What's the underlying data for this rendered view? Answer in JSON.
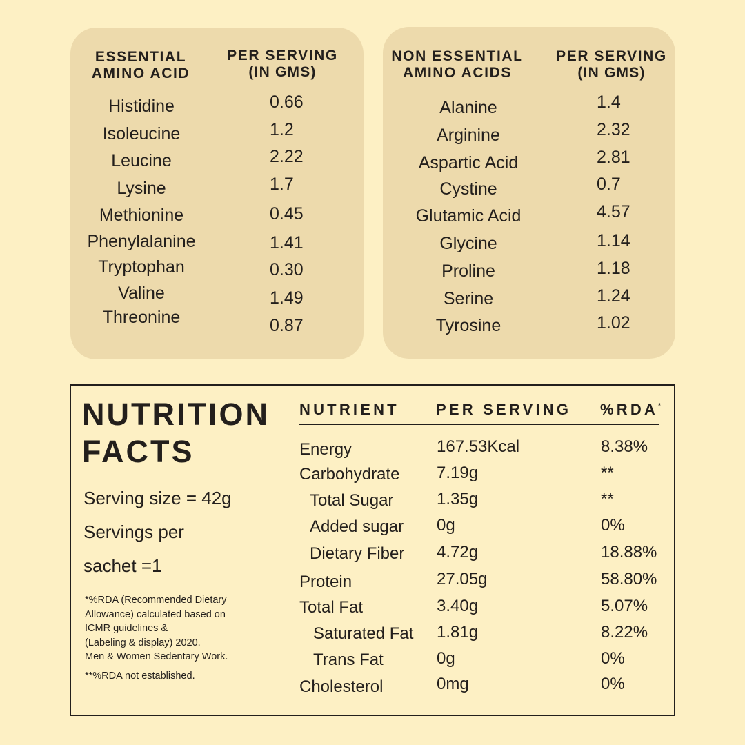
{
  "essential_amino_acids": {
    "header": {
      "col1_line1": "ESSENTIAL",
      "col1_line2": "AMINO ACID",
      "col2_line1": "PER SERVING",
      "col2_line2": "(In gms)"
    },
    "rows": [
      {
        "name": "Histidine",
        "value": "0.66"
      },
      {
        "name": "Isoleucine",
        "value": "1.2"
      },
      {
        "name": "Leucine",
        "value": "2.22"
      },
      {
        "name": "Lysine",
        "value": "1.7"
      },
      {
        "name": "Methionine",
        "value": "0.45"
      },
      {
        "name": "Phenylalanine",
        "value": "1.41"
      },
      {
        "name": "Tryptophan",
        "value": "0.30"
      },
      {
        "name": "Valine",
        "value": "1.49"
      },
      {
        "name": "Threonine",
        "value": "0.87"
      }
    ]
  },
  "non_essential_amino_acids": {
    "header": {
      "col1_line1": "NON ESSENTIAL",
      "col1_line2": "AMINO ACIDS",
      "col2_line1": "PER SERVING",
      "col2_line2": "(In gms)"
    },
    "rows": [
      {
        "name": "Alanine",
        "value": "1.4"
      },
      {
        "name": "Arginine",
        "value": "2.32"
      },
      {
        "name": "Aspartic Acid",
        "value": "2.81"
      },
      {
        "name": "Cystine",
        "value": "0.7"
      },
      {
        "name": "Glutamic Acid",
        "value": "4.57"
      },
      {
        "name": "Glycine",
        "value": "1.14"
      },
      {
        "name": "Proline",
        "value": "1.18"
      },
      {
        "name": "Serine",
        "value": "1.24"
      },
      {
        "name": "Tyrosine",
        "value": "1.02"
      }
    ]
  },
  "nutrition_facts": {
    "title_line1": "NUTRITION",
    "title_line2": "FACTS",
    "serving_size": "Serving size = 42g",
    "servings_per_line1": "Servings per",
    "servings_per_line2": "sachet =1",
    "footnote_lines": [
      "*%RDA (Recommended Dietary",
      "Allowance) calculated based on",
      "ICMR guidelines &",
      "(Labeling & display) 2020.",
      "Men & Women Sedentary Work."
    ],
    "footnote2": "**%RDA not established.",
    "columns": {
      "nutrient": "NUTRIENT",
      "per_serving": "PER SERVING",
      "rda": "%RDA",
      "rda_mark": "*"
    },
    "rows": [
      {
        "nutrient": "Energy",
        "per_serving": "167.53Kcal",
        "rda": "8.38%",
        "indent": 0
      },
      {
        "nutrient": "Carbohydrate",
        "per_serving": "7.19g",
        "rda": "**",
        "indent": 0
      },
      {
        "nutrient": "Total Sugar",
        "per_serving": "1.35g",
        "rda": "**",
        "indent": 1
      },
      {
        "nutrient": "Added sugar",
        "per_serving": "0g",
        "rda": "0%",
        "indent": 1
      },
      {
        "nutrient": "Dietary Fiber",
        "per_serving": "4.72g",
        "rda": "18.88%",
        "indent": 1
      },
      {
        "nutrient": "Protein",
        "per_serving": "27.05g",
        "rda": "58.80%",
        "indent": 0
      },
      {
        "nutrient": "Total Fat",
        "per_serving": "3.40g",
        "rda": "5.07%",
        "indent": 0
      },
      {
        "nutrient": "Saturated Fat",
        "per_serving": "1.81g",
        "rda": "8.22%",
        "indent": 1
      },
      {
        "nutrient": "Trans Fat",
        "per_serving": "0g",
        "rda": "0%",
        "indent": 1
      },
      {
        "nutrient": "Cholesterol",
        "per_serving": "0mg",
        "rda": "0%",
        "indent": 0
      }
    ]
  },
  "colors": {
    "background": "#FDF0C4",
    "card": "#EDDAAC",
    "text": "#231F1C"
  }
}
